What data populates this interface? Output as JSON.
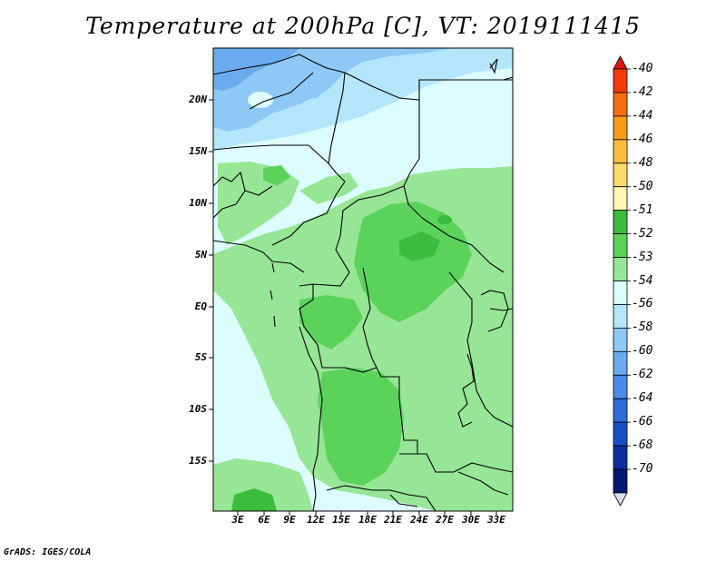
{
  "title": "Temperature at 200hPa [C], VT: 2019111415",
  "lat_labels": [
    "20N",
    "15N",
    "10N",
    "5N",
    "EQ",
    "5S",
    "10S",
    "15S"
  ],
  "lon_labels": [
    "3E",
    "6E",
    "9E",
    "12E",
    "15E",
    "18E",
    "21E",
    "24E",
    "27E",
    "30E",
    "33E"
  ],
  "colorbar": {
    "labels": [
      "-40",
      "-42",
      "-44",
      "-46",
      "-48",
      "-50",
      "-51",
      "-52",
      "-53",
      "-54",
      "-56",
      "-58",
      "-60",
      "-62",
      "-64",
      "-66",
      "-68",
      "-70"
    ],
    "colors": [
      "#e0150a",
      "#f03c0a",
      "#f56e0e",
      "#f79b18",
      "#f9bd3b",
      "#fbd96d",
      "#fdf6b4",
      "#3cbc3c",
      "#5bd35b",
      "#96e696",
      "#ddfdfd",
      "#b4e6fb",
      "#8ec8f5",
      "#6aabef",
      "#4b8ae6",
      "#2f6bdb",
      "#1a4fc8",
      "#0a2f9e",
      "#051870",
      "#dcdcf5"
    ]
  },
  "credit": "GrADS: IGES/COLA"
}
